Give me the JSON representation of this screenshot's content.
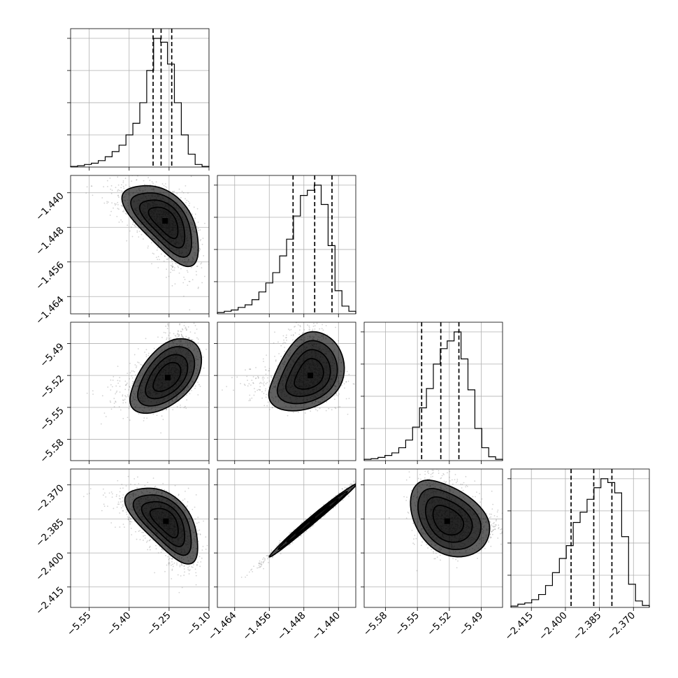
{
  "chart_data": {
    "type": "corner",
    "title": "",
    "parameters": [
      {
        "xlim": [
          -5.62,
          -5.1
        ],
        "ticks": [
          -5.55,
          -5.4,
          -5.25,
          -5.1
        ],
        "tick_labels": [
          "−5.55",
          "−5.40",
          "−5.25",
          "−5.10"
        ],
        "quantiles": [
          -5.31,
          -5.28,
          -5.24
        ]
      },
      {
        "xlim": [
          -1.468,
          -1.436
        ],
        "ticks": [
          -1.464,
          -1.456,
          -1.448,
          -1.44
        ],
        "tick_labels": [
          "−1.464",
          "−1.456",
          "−1.448",
          "−1.440"
        ],
        "quantiles": [
          -1.4505,
          -1.4455,
          -1.4415
        ]
      },
      {
        "xlim": [
          -5.6,
          -5.47
        ],
        "ticks": [
          -5.58,
          -5.55,
          -5.52,
          -5.49
        ],
        "tick_labels": [
          "−5.58",
          "−5.55",
          "−5.52",
          "−5.49"
        ],
        "quantiles": [
          -5.546,
          -5.528,
          -5.511
        ]
      },
      {
        "xlim": [
          -2.424,
          -2.363
        ],
        "ticks": [
          -2.415,
          -2.4,
          -2.385,
          -2.37
        ],
        "tick_labels": [
          "−2.415",
          "−2.400",
          "−2.385",
          "−2.370"
        ],
        "quantiles": [
          -2.3975,
          -2.3875,
          -2.3795
        ]
      }
    ],
    "histograms": [
      {
        "bins": 20,
        "counts": [
          0.005,
          0.01,
          0.02,
          0.03,
          0.05,
          0.08,
          0.12,
          0.17,
          0.25,
          0.34,
          0.5,
          0.75,
          1.0,
          0.97,
          0.8,
          0.5,
          0.25,
          0.1,
          0.02,
          0.005
        ]
      },
      {
        "bins": 20,
        "counts": [
          0.01,
          0.02,
          0.03,
          0.05,
          0.07,
          0.11,
          0.17,
          0.24,
          0.32,
          0.45,
          0.58,
          0.76,
          0.92,
          0.96,
          1.0,
          0.85,
          0.53,
          0.18,
          0.06,
          0.02
        ]
      },
      {
        "bins": 20,
        "counts": [
          0.01,
          0.015,
          0.025,
          0.04,
          0.06,
          0.1,
          0.16,
          0.26,
          0.41,
          0.56,
          0.75,
          0.87,
          0.93,
          1.0,
          0.79,
          0.55,
          0.25,
          0.1,
          0.03,
          0.01
        ]
      },
      {
        "bins": 20,
        "counts": [
          0.01,
          0.025,
          0.035,
          0.06,
          0.1,
          0.17,
          0.27,
          0.38,
          0.48,
          0.66,
          0.74,
          0.84,
          0.93,
          1.0,
          0.97,
          0.89,
          0.55,
          0.18,
          0.05,
          0.015
        ]
      }
    ],
    "pairs": [
      {
        "row": 1,
        "col": 0,
        "mean": [
          -5.265,
          -1.4465
        ],
        "sd": [
          0.065,
          0.0042
        ],
        "rho": -0.62,
        "skew": 0.5
      },
      {
        "row": 2,
        "col": 0,
        "mean": [
          -5.255,
          -5.522
        ],
        "sd": [
          0.06,
          0.016
        ],
        "rho": 0.5,
        "skew": -0.6
      },
      {
        "row": 2,
        "col": 1,
        "mean": [
          -1.4465,
          -5.52
        ],
        "sd": [
          0.0038,
          0.017
        ],
        "rho": 0.3,
        "skew": -0.9
      },
      {
        "row": 3,
        "col": 0,
        "mean": [
          -5.262,
          -2.386
        ],
        "sd": [
          0.062,
          0.0075
        ],
        "rho": -0.62,
        "skew": 0.5
      },
      {
        "row": 3,
        "col": 1,
        "mean": [
          -1.446,
          -2.3855
        ],
        "sd": [
          0.0045,
          0.0072
        ],
        "rho": 0.992,
        "skew": 0.0
      },
      {
        "row": 3,
        "col": 2,
        "mean": [
          -5.522,
          -2.386
        ],
        "sd": [
          0.017,
          0.0075
        ],
        "rho": -0.35,
        "skew": -0.7
      }
    ],
    "contour_levels": [
      0.5,
      1.0,
      1.5,
      2.0
    ],
    "grid": true
  }
}
